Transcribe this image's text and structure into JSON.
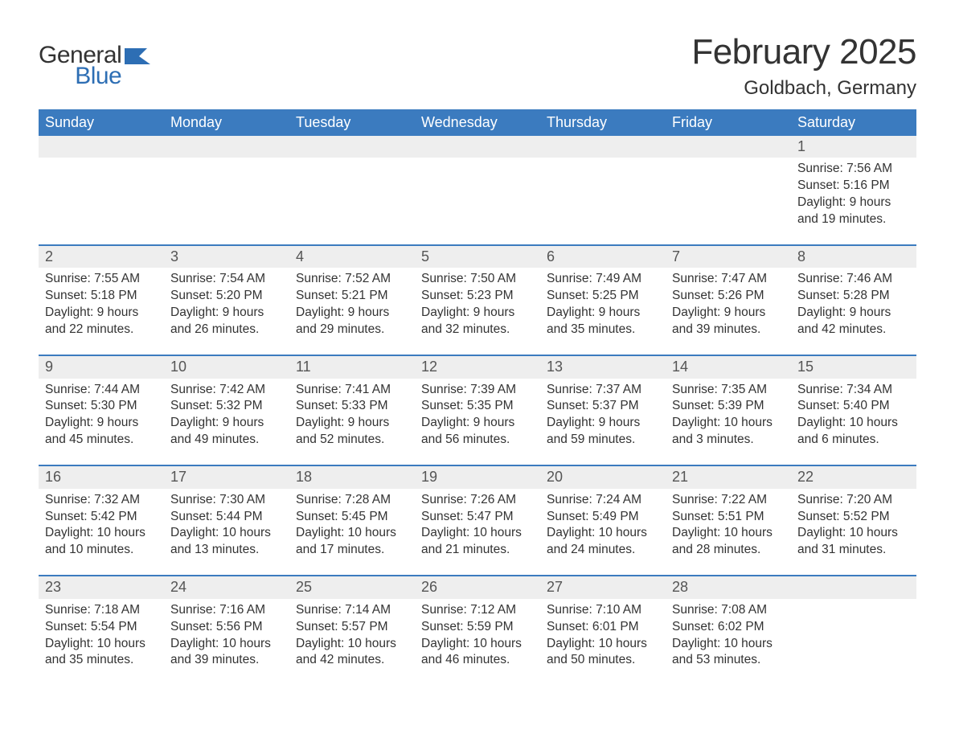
{
  "logo": {
    "word1": "General",
    "word2": "Blue"
  },
  "title": "February 2025",
  "location": "Goldbach, Germany",
  "colors": {
    "header_bg": "#3b7bbf",
    "header_text": "#ffffff",
    "daynum_bg": "#eeeeee",
    "border": "#3b7bbf",
    "text": "#333333",
    "logo_blue": "#2d6eb4"
  },
  "day_headers": [
    "Sunday",
    "Monday",
    "Tuesday",
    "Wednesday",
    "Thursday",
    "Friday",
    "Saturday"
  ],
  "weeks": [
    [
      null,
      null,
      null,
      null,
      null,
      null,
      {
        "n": "1",
        "sr": "Sunrise: 7:56 AM",
        "ss": "Sunset: 5:16 PM",
        "d1": "Daylight: 9 hours",
        "d2": "and 19 minutes."
      }
    ],
    [
      {
        "n": "2",
        "sr": "Sunrise: 7:55 AM",
        "ss": "Sunset: 5:18 PM",
        "d1": "Daylight: 9 hours",
        "d2": "and 22 minutes."
      },
      {
        "n": "3",
        "sr": "Sunrise: 7:54 AM",
        "ss": "Sunset: 5:20 PM",
        "d1": "Daylight: 9 hours",
        "d2": "and 26 minutes."
      },
      {
        "n": "4",
        "sr": "Sunrise: 7:52 AM",
        "ss": "Sunset: 5:21 PM",
        "d1": "Daylight: 9 hours",
        "d2": "and 29 minutes."
      },
      {
        "n": "5",
        "sr": "Sunrise: 7:50 AM",
        "ss": "Sunset: 5:23 PM",
        "d1": "Daylight: 9 hours",
        "d2": "and 32 minutes."
      },
      {
        "n": "6",
        "sr": "Sunrise: 7:49 AM",
        "ss": "Sunset: 5:25 PM",
        "d1": "Daylight: 9 hours",
        "d2": "and 35 minutes."
      },
      {
        "n": "7",
        "sr": "Sunrise: 7:47 AM",
        "ss": "Sunset: 5:26 PM",
        "d1": "Daylight: 9 hours",
        "d2": "and 39 minutes."
      },
      {
        "n": "8",
        "sr": "Sunrise: 7:46 AM",
        "ss": "Sunset: 5:28 PM",
        "d1": "Daylight: 9 hours",
        "d2": "and 42 minutes."
      }
    ],
    [
      {
        "n": "9",
        "sr": "Sunrise: 7:44 AM",
        "ss": "Sunset: 5:30 PM",
        "d1": "Daylight: 9 hours",
        "d2": "and 45 minutes."
      },
      {
        "n": "10",
        "sr": "Sunrise: 7:42 AM",
        "ss": "Sunset: 5:32 PM",
        "d1": "Daylight: 9 hours",
        "d2": "and 49 minutes."
      },
      {
        "n": "11",
        "sr": "Sunrise: 7:41 AM",
        "ss": "Sunset: 5:33 PM",
        "d1": "Daylight: 9 hours",
        "d2": "and 52 minutes."
      },
      {
        "n": "12",
        "sr": "Sunrise: 7:39 AM",
        "ss": "Sunset: 5:35 PM",
        "d1": "Daylight: 9 hours",
        "d2": "and 56 minutes."
      },
      {
        "n": "13",
        "sr": "Sunrise: 7:37 AM",
        "ss": "Sunset: 5:37 PM",
        "d1": "Daylight: 9 hours",
        "d2": "and 59 minutes."
      },
      {
        "n": "14",
        "sr": "Sunrise: 7:35 AM",
        "ss": "Sunset: 5:39 PM",
        "d1": "Daylight: 10 hours",
        "d2": "and 3 minutes."
      },
      {
        "n": "15",
        "sr": "Sunrise: 7:34 AM",
        "ss": "Sunset: 5:40 PM",
        "d1": "Daylight: 10 hours",
        "d2": "and 6 minutes."
      }
    ],
    [
      {
        "n": "16",
        "sr": "Sunrise: 7:32 AM",
        "ss": "Sunset: 5:42 PM",
        "d1": "Daylight: 10 hours",
        "d2": "and 10 minutes."
      },
      {
        "n": "17",
        "sr": "Sunrise: 7:30 AM",
        "ss": "Sunset: 5:44 PM",
        "d1": "Daylight: 10 hours",
        "d2": "and 13 minutes."
      },
      {
        "n": "18",
        "sr": "Sunrise: 7:28 AM",
        "ss": "Sunset: 5:45 PM",
        "d1": "Daylight: 10 hours",
        "d2": "and 17 minutes."
      },
      {
        "n": "19",
        "sr": "Sunrise: 7:26 AM",
        "ss": "Sunset: 5:47 PM",
        "d1": "Daylight: 10 hours",
        "d2": "and 21 minutes."
      },
      {
        "n": "20",
        "sr": "Sunrise: 7:24 AM",
        "ss": "Sunset: 5:49 PM",
        "d1": "Daylight: 10 hours",
        "d2": "and 24 minutes."
      },
      {
        "n": "21",
        "sr": "Sunrise: 7:22 AM",
        "ss": "Sunset: 5:51 PM",
        "d1": "Daylight: 10 hours",
        "d2": "and 28 minutes."
      },
      {
        "n": "22",
        "sr": "Sunrise: 7:20 AM",
        "ss": "Sunset: 5:52 PM",
        "d1": "Daylight: 10 hours",
        "d2": "and 31 minutes."
      }
    ],
    [
      {
        "n": "23",
        "sr": "Sunrise: 7:18 AM",
        "ss": "Sunset: 5:54 PM",
        "d1": "Daylight: 10 hours",
        "d2": "and 35 minutes."
      },
      {
        "n": "24",
        "sr": "Sunrise: 7:16 AM",
        "ss": "Sunset: 5:56 PM",
        "d1": "Daylight: 10 hours",
        "d2": "and 39 minutes."
      },
      {
        "n": "25",
        "sr": "Sunrise: 7:14 AM",
        "ss": "Sunset: 5:57 PM",
        "d1": "Daylight: 10 hours",
        "d2": "and 42 minutes."
      },
      {
        "n": "26",
        "sr": "Sunrise: 7:12 AM",
        "ss": "Sunset: 5:59 PM",
        "d1": "Daylight: 10 hours",
        "d2": "and 46 minutes."
      },
      {
        "n": "27",
        "sr": "Sunrise: 7:10 AM",
        "ss": "Sunset: 6:01 PM",
        "d1": "Daylight: 10 hours",
        "d2": "and 50 minutes."
      },
      {
        "n": "28",
        "sr": "Sunrise: 7:08 AM",
        "ss": "Sunset: 6:02 PM",
        "d1": "Daylight: 10 hours",
        "d2": "and 53 minutes."
      },
      null
    ]
  ]
}
